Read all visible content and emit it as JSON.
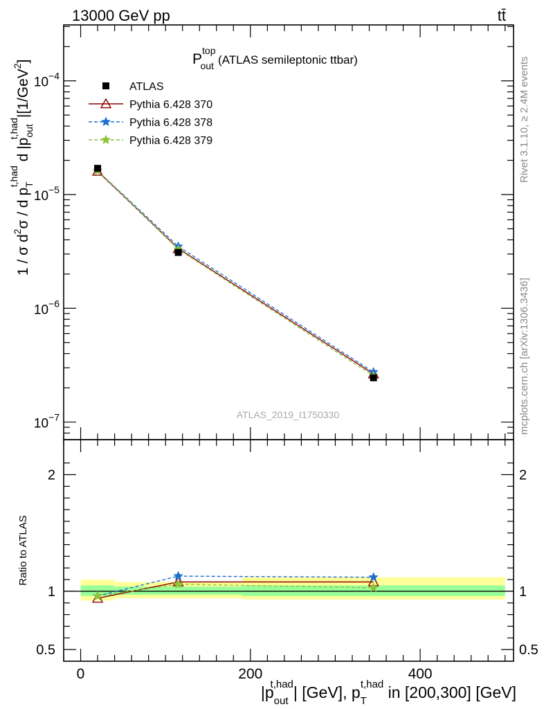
{
  "header": {
    "left": "13000 GeV pp",
    "right": "tt̄"
  },
  "side_labels": {
    "rivet": "Rivet 3.1.10, ≥ 2.4M events",
    "mcplots": "mcplots.cern.ch [arXiv:1306.3436]"
  },
  "plot_title": {
    "main": "P",
    "sup": "top",
    "sub": "out",
    "suffix": "(ATLAS semileptonic ttbar)"
  },
  "watermark": "ATLAS_2019_I1750330",
  "y_axis_label": {
    "p1": "1 / σ d",
    "p2": "2",
    "p3": "σ / d p",
    "p4": "T",
    "p5": "t,had",
    "p6": " d |p",
    "p7": "out",
    "p8": "t,had",
    "p9": "|[1/GeV",
    "p10": "2",
    "p11": "]"
  },
  "ratio_label": "Ratio to ATLAS",
  "x_axis_label": {
    "p1": "|p",
    "p2": "out",
    "p3": "t,had",
    "p4": "| [GeV], p",
    "p5": "T",
    "p6": "t,had",
    "p7": " in [200,300] [GeV]"
  },
  "main_y_ticks": [
    {
      "mant": "10",
      "exp": "−4",
      "v": 0.0001
    },
    {
      "mant": "10",
      "exp": "−5",
      "v": 1e-05
    },
    {
      "mant": "10",
      "exp": "−6",
      "v": 1e-06
    },
    {
      "mant": "10",
      "exp": "−7",
      "v": 1e-07
    }
  ],
  "ratio_y_ticks": [
    {
      "label": "2",
      "v": 2
    },
    {
      "label": "1",
      "v": 1
    },
    {
      "label": "0.5",
      "v": 0.5
    }
  ],
  "x_ticks": [
    {
      "label": "0",
      "v": 0
    },
    {
      "label": "200",
      "v": 200
    },
    {
      "label": "400",
      "v": 400
    }
  ],
  "legend": [
    {
      "label": "ATLAS",
      "marker": "square",
      "color": "#000000",
      "dash": "none"
    },
    {
      "label": "Pythia 6.428 370",
      "marker": "triangle",
      "color": "#8b0000",
      "dash": "none"
    },
    {
      "label": "Pythia 6.428 378",
      "marker": "star",
      "color": "#1e6fd0",
      "dash": "dashed"
    },
    {
      "label": "Pythia 6.428 379",
      "marker": "star",
      "color": "#8cc43c",
      "dash": "dashed"
    }
  ],
  "chart_data": {
    "type": "line",
    "x_scale": "linear",
    "xlim": [
      -20,
      510
    ],
    "main_y_scale": "log",
    "main_ylim": [
      7e-08,
      0.00031
    ],
    "ratio_ylim": [
      0.4,
      2.3
    ],
    "bins": [
      [
        0,
        40
      ],
      [
        40,
        190
      ],
      [
        190,
        500
      ]
    ],
    "x": [
      20,
      115,
      345
    ],
    "series": [
      {
        "name": "ATLAS",
        "values": [
          1.7e-05,
          3.1e-06,
          2.45e-07
        ],
        "ratio": [
          1.0,
          1.0,
          1.0
        ]
      },
      {
        "name": "Pythia 6.428 370",
        "values": [
          1.6e-05,
          3.35e-06,
          2.65e-07
        ],
        "ratio": [
          0.94,
          1.08,
          1.08
        ]
      },
      {
        "name": "Pythia 6.428 378",
        "values": [
          1.62e-05,
          3.5e-06,
          2.75e-07
        ],
        "ratio": [
          0.96,
          1.13,
          1.12
        ]
      },
      {
        "name": "Pythia 6.428 379",
        "values": [
          1.62e-05,
          3.3e-06,
          2.55e-07
        ],
        "ratio": [
          0.96,
          1.06,
          1.03
        ]
      }
    ],
    "uncertainty_bands": {
      "green": [
        [
          0.96,
          1.05
        ],
        [
          0.97,
          1.04
        ],
        [
          0.96,
          1.05
        ]
      ],
      "yellow": [
        [
          0.92,
          1.1
        ],
        [
          0.94,
          1.08
        ],
        [
          0.93,
          1.12
        ]
      ]
    }
  }
}
